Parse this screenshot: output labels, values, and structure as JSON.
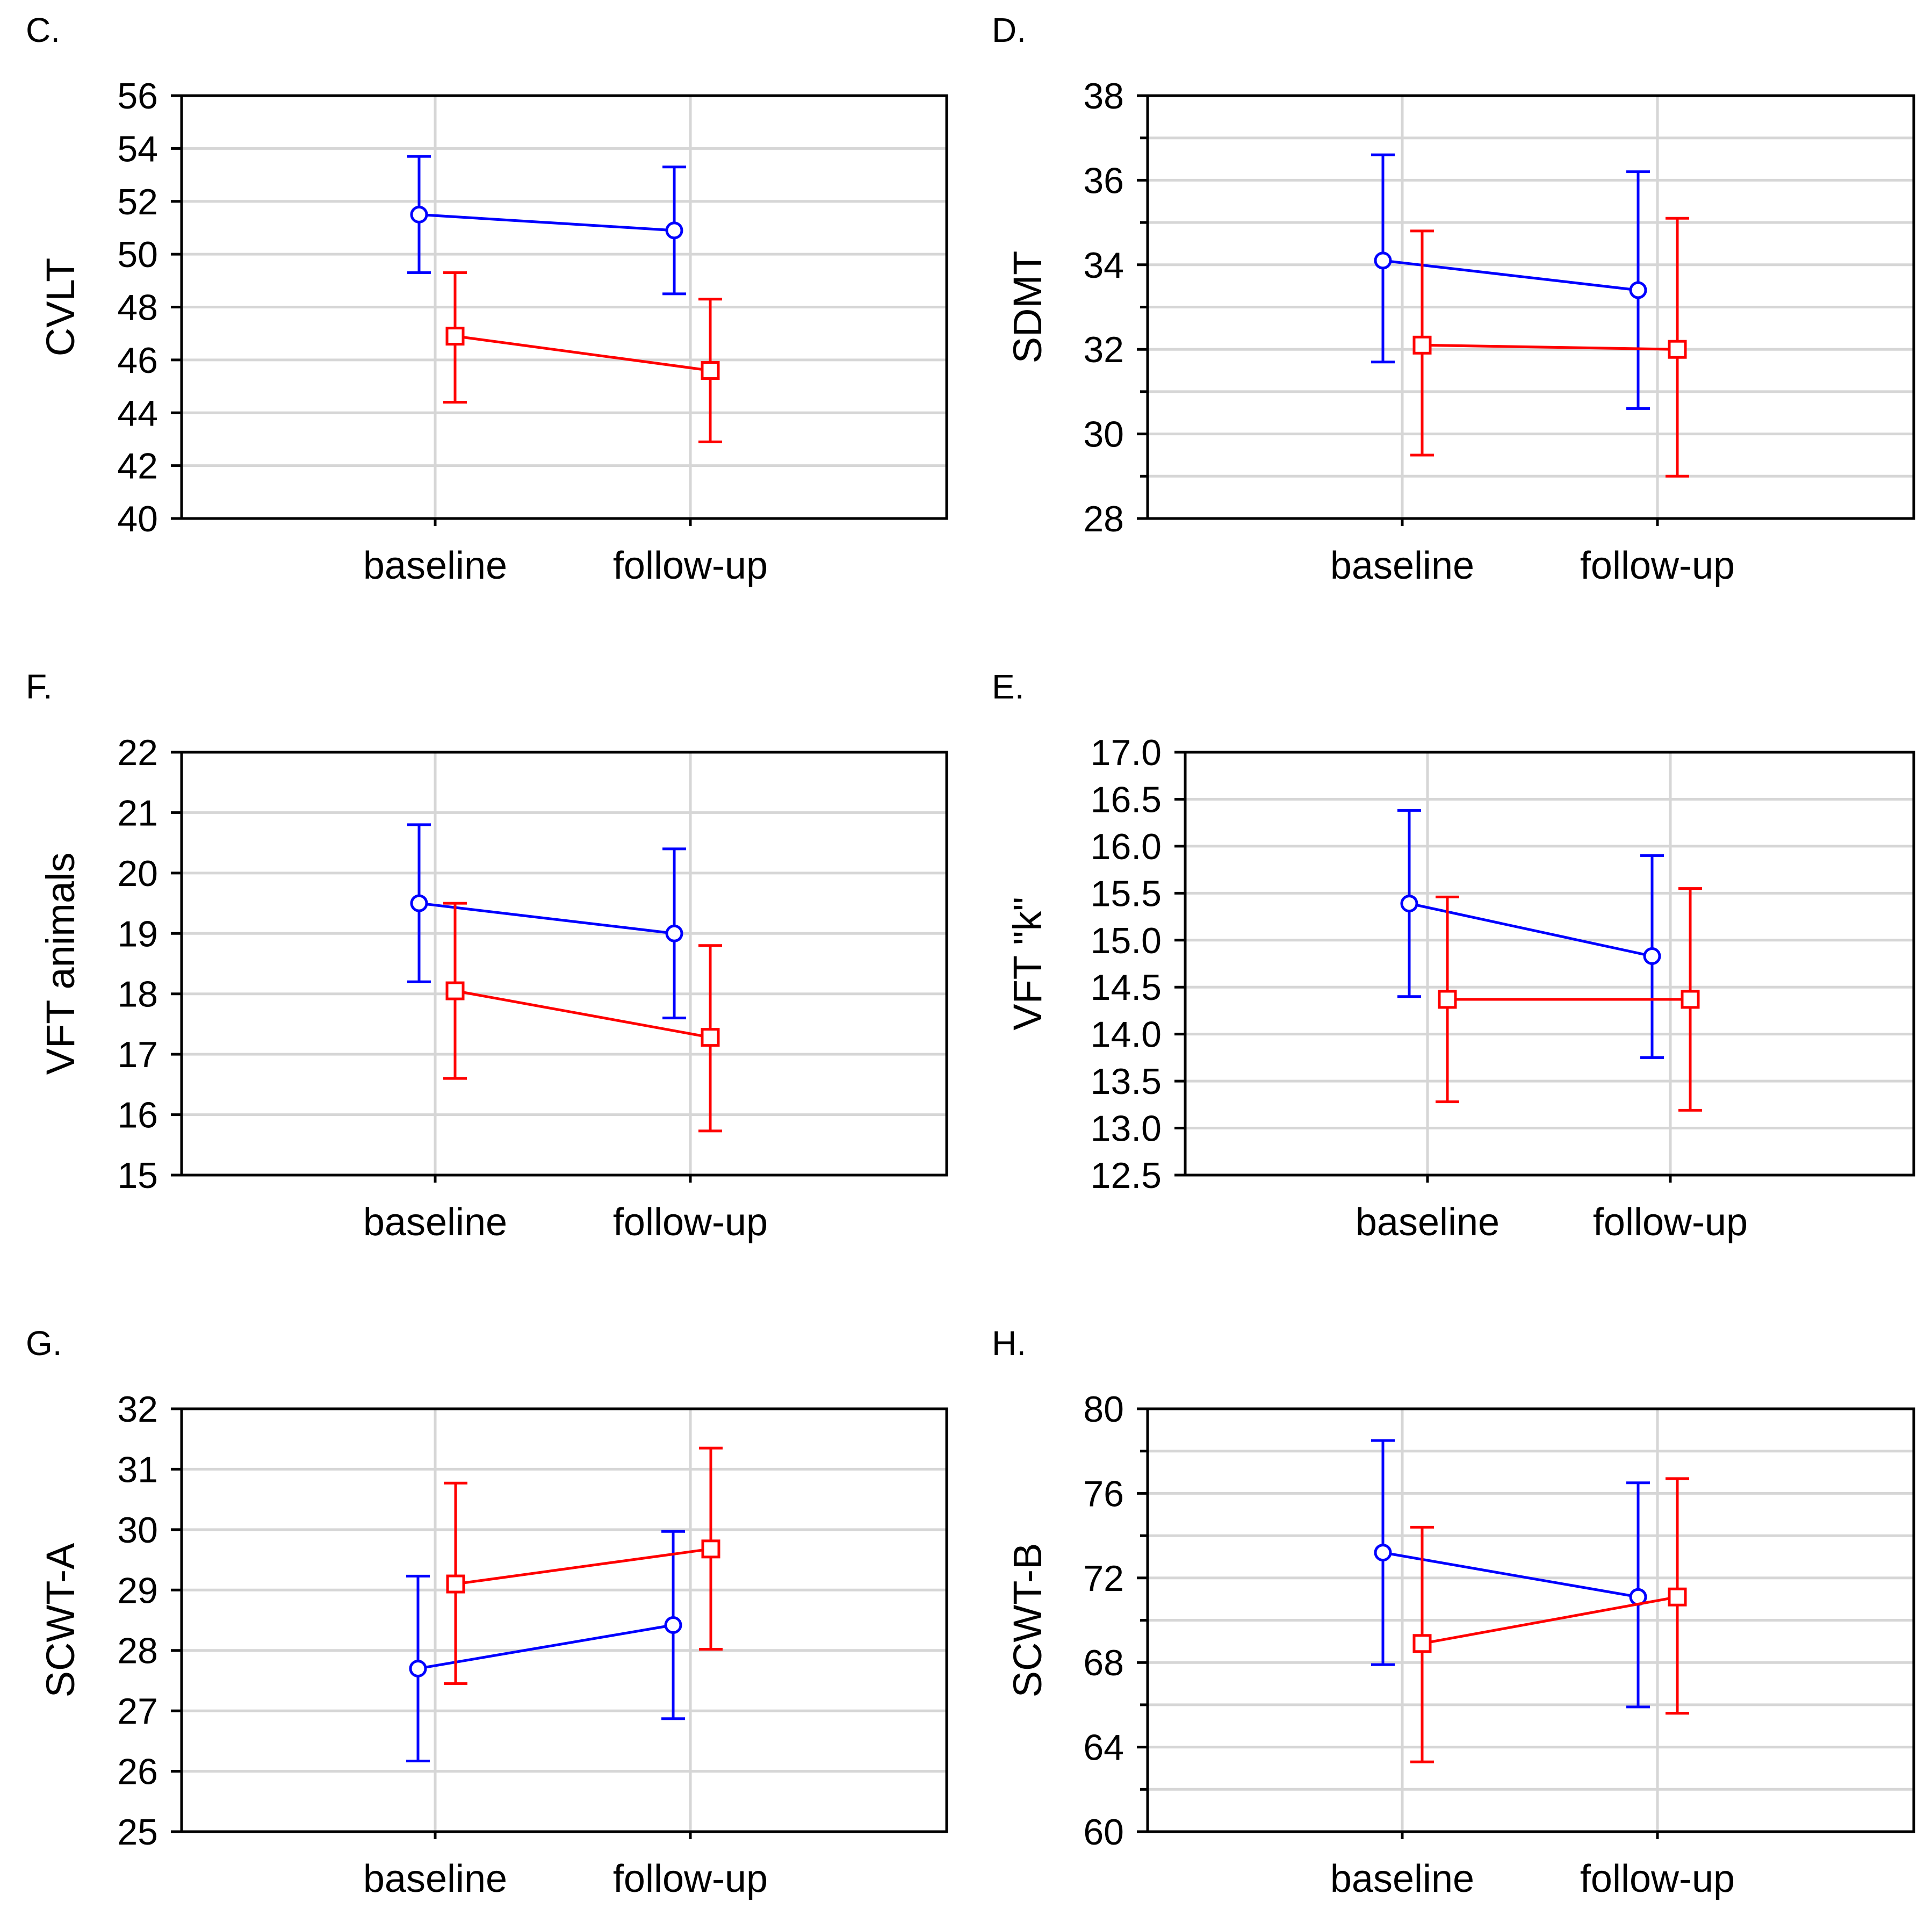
{
  "chart_data": [
    {
      "type": "line",
      "panel_label": "C.",
      "ylabel": "CVLT",
      "categories": [
        "baseline",
        "follow-up"
      ],
      "ylim": [
        40,
        56
      ],
      "yticks": [
        "40",
        "42",
        "44",
        "46",
        "48",
        "50",
        "52",
        "54",
        "56"
      ],
      "series": [
        {
          "name": "blue-circle",
          "color": "#0000ff",
          "marker": "circle",
          "values": [
            51.5,
            50.9
          ],
          "lower": [
            49.3,
            48.5
          ],
          "upper": [
            53.7,
            53.3
          ]
        },
        {
          "name": "red-square",
          "color": "#ff0000",
          "marker": "square",
          "values": [
            46.9,
            45.6
          ],
          "lower": [
            44.4,
            42.9
          ],
          "upper": [
            49.3,
            48.3
          ]
        }
      ]
    },
    {
      "type": "line",
      "panel_label": "D.",
      "ylabel": "SDMT",
      "categories": [
        "baseline",
        "follow-up"
      ],
      "ylim": [
        28,
        38
      ],
      "yticks": [
        "28",
        "30",
        "32",
        "34",
        "36",
        "38"
      ],
      "series": [
        {
          "name": "blue-circle",
          "color": "#0000ff",
          "marker": "circle",
          "values": [
            34.1,
            33.4
          ],
          "lower": [
            31.7,
            30.6
          ],
          "upper": [
            36.6,
            36.2
          ]
        },
        {
          "name": "red-square",
          "color": "#ff0000",
          "marker": "square",
          "values": [
            32.1,
            32.0
          ],
          "lower": [
            29.5,
            29.0
          ],
          "upper": [
            34.8,
            35.1
          ]
        }
      ]
    },
    {
      "type": "line",
      "panel_label": "F.",
      "ylabel": "VFT animals",
      "categories": [
        "baseline",
        "follow-up"
      ],
      "ylim": [
        15,
        22
      ],
      "yticks": [
        "15",
        "16",
        "17",
        "18",
        "19",
        "20",
        "21",
        "22"
      ],
      "series": [
        {
          "name": "blue-circle",
          "color": "#0000ff",
          "marker": "circle",
          "values": [
            19.5,
            19.0
          ],
          "lower": [
            18.2,
            17.6
          ],
          "upper": [
            20.8,
            20.4
          ]
        },
        {
          "name": "red-square",
          "color": "#ff0000",
          "marker": "square",
          "values": [
            18.05,
            17.28
          ],
          "lower": [
            16.6,
            15.73
          ],
          "upper": [
            19.5,
            18.8
          ]
        }
      ]
    },
    {
      "type": "line",
      "panel_label": "E.",
      "ylabel": "VFT \"k\"",
      "categories": [
        "baseline",
        "follow-up"
      ],
      "ylim": [
        12.5,
        17.0
      ],
      "yticks": [
        "12.5",
        "13.0",
        "13.5",
        "14.0",
        "14.5",
        "15.0",
        "15.5",
        "16.0",
        "16.5",
        "17.0"
      ],
      "series": [
        {
          "name": "blue-circle",
          "color": "#0000ff",
          "marker": "circle",
          "values": [
            15.39,
            14.83
          ],
          "lower": [
            14.4,
            13.75
          ],
          "upper": [
            16.38,
            15.9
          ]
        },
        {
          "name": "red-square",
          "color": "#ff0000",
          "marker": "square",
          "values": [
            14.37,
            14.37
          ],
          "lower": [
            13.28,
            13.19
          ],
          "upper": [
            15.46,
            15.55
          ]
        }
      ]
    },
    {
      "type": "line",
      "panel_label": "G.",
      "ylabel": "SCWT-A",
      "categories": [
        "baseline",
        "follow-up"
      ],
      "ylim": [
        25,
        32
      ],
      "yticks": [
        "25",
        "26",
        "27",
        "28",
        "29",
        "30",
        "31",
        "32"
      ],
      "series": [
        {
          "name": "blue-circle",
          "color": "#0000ff",
          "marker": "circle",
          "values": [
            27.7,
            28.42
          ],
          "lower": [
            26.17,
            26.87
          ],
          "upper": [
            29.23,
            29.97
          ]
        },
        {
          "name": "red-square",
          "color": "#ff0000",
          "marker": "square",
          "values": [
            29.1,
            29.68
          ],
          "lower": [
            27.45,
            28.02
          ],
          "upper": [
            30.77,
            31.35
          ]
        }
      ]
    },
    {
      "type": "line",
      "panel_label": "H.",
      "ylabel": "SCWT-B",
      "categories": [
        "baseline",
        "follow-up"
      ],
      "ylim": [
        60,
        80
      ],
      "yticks": [
        "60",
        "64",
        "68",
        "72",
        "76",
        "80"
      ],
      "series": [
        {
          "name": "blue-circle",
          "color": "#0000ff",
          "marker": "circle",
          "values": [
            73.2,
            71.1
          ],
          "lower": [
            67.9,
            65.9
          ],
          "upper": [
            78.5,
            76.5
          ]
        },
        {
          "name": "red-square",
          "color": "#ff0000",
          "marker": "square",
          "values": [
            68.9,
            71.1
          ],
          "lower": [
            63.3,
            65.6
          ],
          "upper": [
            74.4,
            76.7
          ]
        }
      ]
    }
  ]
}
